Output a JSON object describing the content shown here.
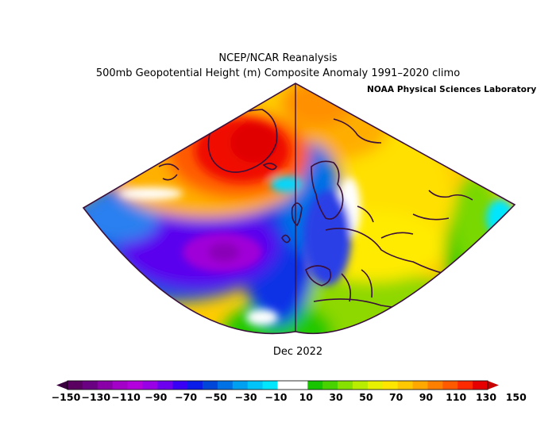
{
  "title_line1": "NCEP/NCAR Reanalysis",
  "title_line2": "500mb Geopotential Height (m) Composite Anomaly 1991–2020 climo",
  "credit": "NOAA Physical Sciences Laboratory",
  "period_label": "Dec 2022",
  "colors": {
    "coast": "#3a0f3a",
    "frame": "#3a0f3a"
  },
  "colorbar": {
    "tick_labels": [
      "−150",
      "−130",
      "−110",
      "−90",
      "−70",
      "−50",
      "−30",
      "−10",
      "10",
      "30",
      "50",
      "70",
      "90",
      "110",
      "130",
      "150"
    ],
    "swatches": [
      "#5a0060",
      "#6a0082",
      "#8a00a8",
      "#a300c8",
      "#b400dc",
      "#9a00e6",
      "#6e00f0",
      "#3a00f5",
      "#0a1de8",
      "#0046d8",
      "#0072e6",
      "#00a0f0",
      "#00c4f8",
      "#00e6ff",
      "#ffffff",
      "#ffffff",
      "#18c400",
      "#48d200",
      "#86e000",
      "#b8ec00",
      "#e6f000",
      "#ffe600",
      "#ffc800",
      "#ffa800",
      "#ff8000",
      "#ff5a00",
      "#ff2a00",
      "#e60000"
    ]
  },
  "map": {
    "field": "500mb geopotential height anomaly",
    "units": "m",
    "features": [
      {
        "name": "Greenland ridge",
        "sign": "positive",
        "approx_max_m": 130
      },
      {
        "name": "Trough west of Iberia / mid-Atlantic",
        "sign": "negative",
        "approx_min_m": -150
      },
      {
        "name": "Scandinavia / western Europe trough",
        "sign": "negative",
        "approx_min_m": -70
      },
      {
        "name": "Eastern Europe / Russia ridge",
        "sign": "positive",
        "approx_max_m": 90
      }
    ]
  }
}
